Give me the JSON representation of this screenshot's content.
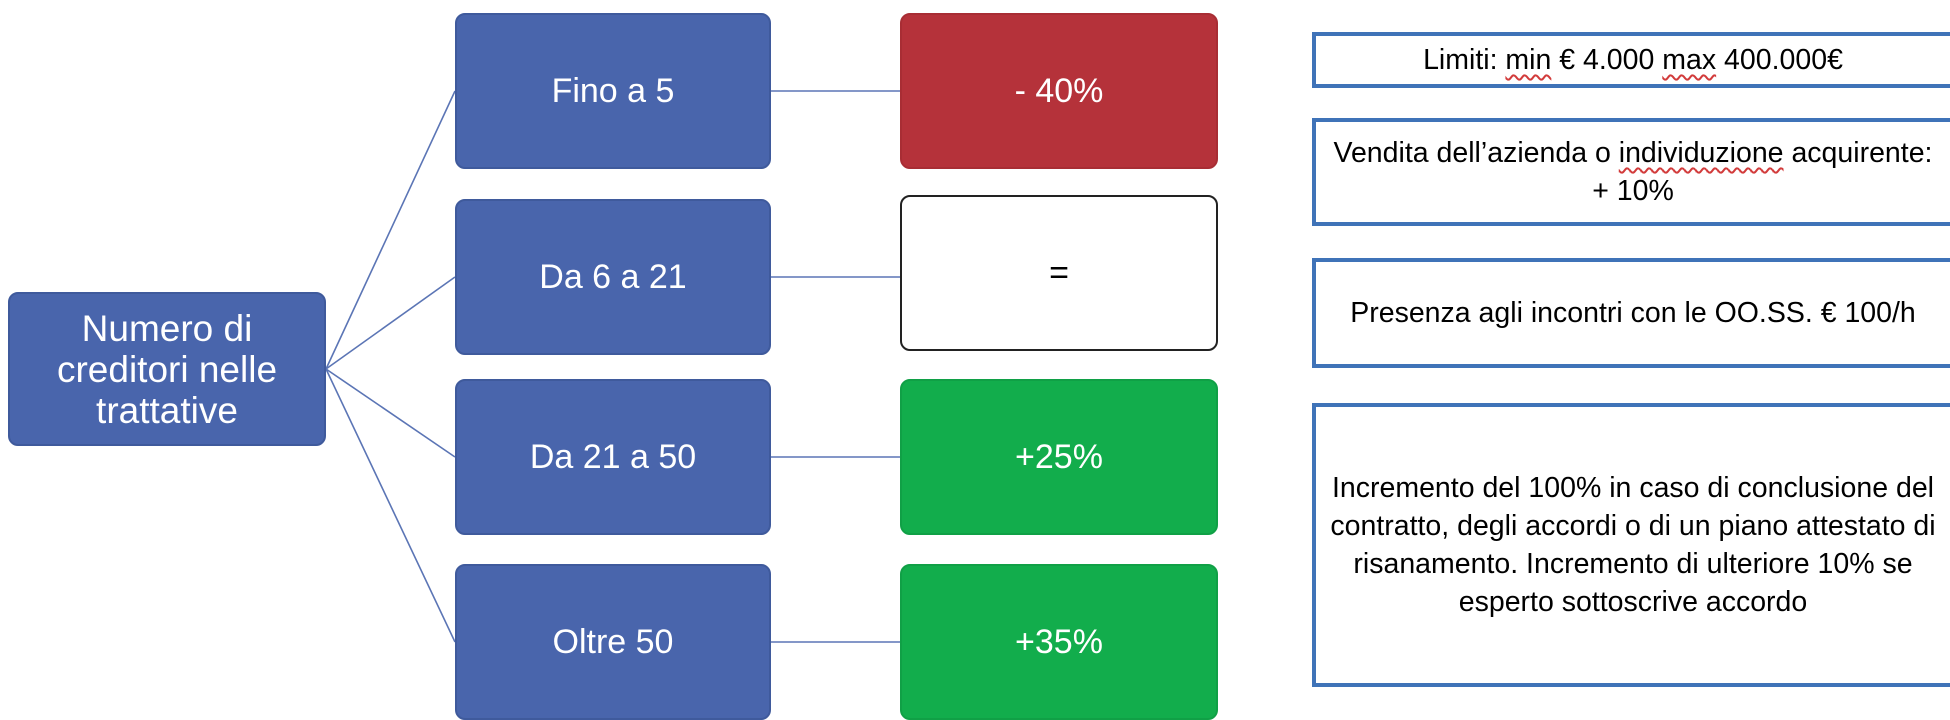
{
  "root": {
    "label": "Numero di creditori nelle trattative"
  },
  "colors": {
    "node_blue": "#4965ac",
    "red": "#b5323a",
    "green": "#12ad4c",
    "note_border": "#3f73b8"
  },
  "rows": [
    {
      "category": "Fino a 5",
      "value": "- 40%"
    },
    {
      "category": "Da 6 a 21",
      "value": "="
    },
    {
      "category": "Da 21 a 50",
      "value": "+25%"
    },
    {
      "category": "Oltre 50",
      "value": "+35%"
    }
  ],
  "notes": {
    "limits": {
      "prefix": "Limiti: ",
      "w1": "min",
      "mid": " € 4.000 ",
      "w2": "max",
      "suffix": " 400.000€"
    },
    "sale": {
      "prefix": "Vendita dell’azienda o ",
      "w1": "individuzione",
      "suffix": " acquirente: + 10%"
    },
    "meetings": "Presenza agli incontri con le OO.SS. € 100/h",
    "increment": "Incremento del 100% in caso di conclusione del contratto, degli accordi o di un piano attestato di risanamento. Incremento di ulteriore 10% se esperto sottoscrive accordo"
  }
}
